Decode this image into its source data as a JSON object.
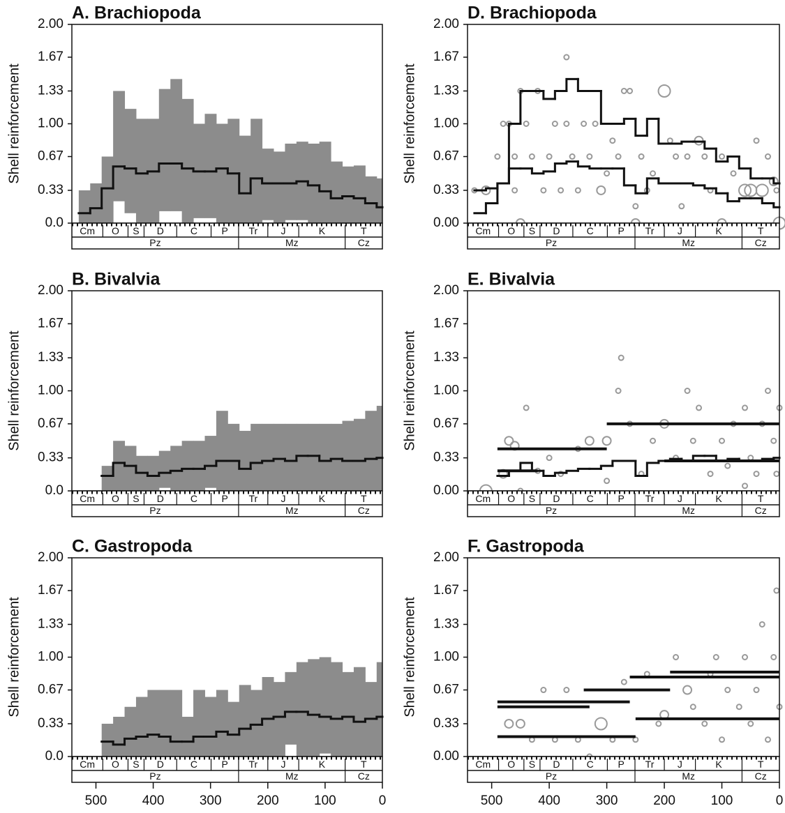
{
  "timescale": {
    "periods": [
      "Cm",
      "O",
      "S",
      "D",
      "C",
      "P",
      "Tr",
      "J",
      "K",
      "T"
    ],
    "period_bounds": [
      542,
      488,
      444,
      416,
      359,
      299,
      251,
      200,
      146,
      65,
      0
    ],
    "eras": [
      "Pz",
      "Mz",
      "Cz"
    ],
    "era_bounds": [
      542,
      251,
      65,
      0
    ]
  },
  "chart_data": [
    {
      "type": "range",
      "title": "A. Brachiopoda",
      "y_label": "Shell reinforcement",
      "xlim": [
        542,
        0
      ],
      "ylim": [
        0,
        2
      ],
      "yticks": [
        {
          "value": 0,
          "label": "0.0"
        },
        0.33,
        0.67,
        {
          "value": 1,
          "label": "1.00"
        },
        1.33,
        1.67,
        {
          "value": 2,
          "label": "2.00"
        }
      ],
      "band_color": "#8c8c8c",
      "line_color": "#111111",
      "bins": [
        530,
        510,
        490,
        470,
        450,
        430,
        410,
        390,
        370,
        350,
        330,
        310,
        290,
        270,
        250,
        230,
        210,
        190,
        170,
        150,
        130,
        110,
        90,
        70,
        50,
        30,
        10,
        0
      ],
      "upper_values": [
        0.33,
        0.4,
        0.67,
        1.33,
        1.15,
        1.05,
        1.05,
        1.35,
        1.45,
        1.25,
        1.0,
        1.1,
        1.0,
        1.05,
        0.88,
        1.05,
        0.75,
        0.72,
        0.8,
        0.82,
        0.8,
        0.82,
        0.62,
        0.57,
        0.58,
        0.47,
        0.45
      ],
      "median_values": [
        0.1,
        0.15,
        0.35,
        0.57,
        0.55,
        0.5,
        0.52,
        0.6,
        0.6,
        0.55,
        0.52,
        0.52,
        0.55,
        0.5,
        0.3,
        0.45,
        0.4,
        0.4,
        0.4,
        0.42,
        0.38,
        0.32,
        0.25,
        0.27,
        0.25,
        0.2,
        0.16
      ],
      "lower_values": [
        0,
        0,
        0,
        0.22,
        0.1,
        0,
        0,
        0.12,
        0.12,
        0,
        0.05,
        0.05,
        0,
        0,
        0,
        0,
        0.03,
        0,
        0.03,
        0.03,
        0,
        0,
        0,
        0,
        0,
        0,
        0
      ]
    },
    {
      "type": "range",
      "title": "B. Bivalvia",
      "y_label": "Shell reinforcement",
      "xlim": [
        542,
        0
      ],
      "ylim": [
        0,
        2
      ],
      "yticks": [
        {
          "value": 0,
          "label": "0.0"
        },
        0.33,
        0.67,
        {
          "value": 1,
          "label": "1.00"
        },
        1.33,
        1.67,
        {
          "value": 2,
          "label": "2.00"
        }
      ],
      "band_color": "#8c8c8c",
      "line_color": "#111111",
      "bins": [
        530,
        510,
        490,
        470,
        450,
        430,
        410,
        390,
        370,
        350,
        330,
        310,
        290,
        270,
        250,
        230,
        210,
        190,
        170,
        150,
        130,
        110,
        90,
        70,
        50,
        30,
        10,
        0
      ],
      "upper_values": [
        null,
        null,
        0.25,
        0.5,
        0.45,
        0.35,
        0.35,
        0.4,
        0.45,
        0.5,
        0.5,
        0.55,
        0.8,
        0.67,
        0.6,
        0.67,
        0.67,
        0.67,
        0.67,
        0.67,
        0.67,
        0.67,
        0.67,
        0.7,
        0.72,
        0.8,
        0.85
      ],
      "median_values": [
        null,
        null,
        0.15,
        0.28,
        0.25,
        0.18,
        0.15,
        0.18,
        0.2,
        0.22,
        0.22,
        0.25,
        0.3,
        0.3,
        0.22,
        0.28,
        0.3,
        0.32,
        0.3,
        0.35,
        0.35,
        0.3,
        0.32,
        0.3,
        0.3,
        0.32,
        0.33
      ],
      "lower_values": [
        null,
        null,
        0,
        0,
        0,
        0,
        0,
        0.03,
        0,
        0,
        0,
        0.03,
        0,
        0,
        0,
        0,
        0,
        0,
        0,
        0,
        0,
        0,
        0,
        0,
        0,
        0,
        0
      ]
    },
    {
      "type": "range",
      "title": "C. Gastropoda",
      "y_label": "Shell reinforcement",
      "xlim": [
        542,
        0
      ],
      "ylim": [
        0,
        2
      ],
      "xticks": [
        500,
        400,
        300,
        200,
        100,
        0
      ],
      "yticks": [
        {
          "value": 0,
          "label": "0.0"
        },
        0.33,
        0.67,
        {
          "value": 1,
          "label": "1.00"
        },
        1.33,
        1.67,
        {
          "value": 2,
          "label": "2.00"
        }
      ],
      "band_color": "#8c8c8c",
      "line_color": "#111111",
      "bins": [
        530,
        510,
        490,
        470,
        450,
        430,
        410,
        390,
        370,
        350,
        330,
        310,
        290,
        270,
        250,
        230,
        210,
        190,
        170,
        150,
        130,
        110,
        90,
        70,
        50,
        30,
        10,
        0
      ],
      "upper_values": [
        null,
        null,
        0.33,
        0.4,
        0.5,
        0.6,
        0.67,
        0.67,
        0.67,
        0.4,
        0.67,
        0.6,
        0.67,
        0.55,
        0.72,
        0.67,
        0.8,
        0.75,
        0.85,
        0.95,
        0.98,
        1.0,
        0.95,
        0.85,
        0.9,
        0.75,
        0.95
      ],
      "median_values": [
        null,
        null,
        0.15,
        0.12,
        0.18,
        0.2,
        0.22,
        0.2,
        0.15,
        0.15,
        0.2,
        0.2,
        0.25,
        0.22,
        0.28,
        0.32,
        0.38,
        0.4,
        0.45,
        0.45,
        0.42,
        0.4,
        0.38,
        0.4,
        0.35,
        0.38,
        0.4
      ],
      "lower_values": [
        null,
        null,
        0,
        0,
        0,
        0,
        0,
        0,
        0,
        0,
        0,
        0,
        0,
        0,
        0,
        0,
        0,
        0,
        0.12,
        0,
        0,
        0.03,
        0,
        0,
        0,
        0,
        0
      ]
    },
    {
      "type": "scatter",
      "title": "D. Brachiopoda",
      "y_label": "Shell reinforcement",
      "xlim": [
        542,
        0
      ],
      "ylim": [
        0,
        2
      ],
      "yticks": [
        {
          "value": 0,
          "label": "0.00"
        },
        0.33,
        0.67,
        {
          "value": 1,
          "label": "1.00"
        },
        1.33,
        1.67,
        {
          "value": 2,
          "label": "2.00"
        }
      ],
      "point_color": "#999999",
      "line_color": "#111111",
      "points": {
        "x": [
          530,
          510,
          490,
          480,
          470,
          460,
          460,
          450,
          440,
          430,
          420,
          410,
          400,
          390,
          380,
          370,
          360,
          350,
          340,
          330,
          320,
          310,
          300,
          290,
          280,
          270,
          260,
          250,
          240,
          230,
          220,
          200,
          190,
          180,
          170,
          160,
          140,
          130,
          120,
          100,
          80,
          60,
          50,
          40,
          30,
          20,
          10,
          5,
          370,
          0,
          100,
          250,
          450
        ],
        "y": [
          0.33,
          0.33,
          0.67,
          1.0,
          1.0,
          0.67,
          0.33,
          1.33,
          1.0,
          0.67,
          1.33,
          0.33,
          0.67,
          1.0,
          0.33,
          1.0,
          0.67,
          0.33,
          1.0,
          0.67,
          1.0,
          0.33,
          0.5,
          0.83,
          0.67,
          1.33,
          1.33,
          0.17,
          0.67,
          0.33,
          0.5,
          1.33,
          0.83,
          0.67,
          0.17,
          0.67,
          0.83,
          0.67,
          0.33,
          0.67,
          0.5,
          0.33,
          0.33,
          0.83,
          0.33,
          0.67,
          0.42,
          0.33,
          1.67,
          0.0,
          0.0,
          0.0,
          0.0
        ],
        "sizes": [
          1,
          2,
          1,
          1,
          1,
          1,
          1,
          1,
          1,
          1,
          1,
          1,
          1,
          1,
          1,
          1,
          1,
          1,
          1,
          1,
          1,
          2,
          1,
          1,
          1,
          1,
          1,
          1,
          1,
          1,
          1,
          3,
          1,
          1,
          1,
          1,
          2,
          1,
          1,
          1,
          1,
          3,
          3,
          1,
          3,
          1,
          2,
          1,
          1,
          3,
          2,
          2,
          2
        ]
      },
      "bins": [
        530,
        510,
        490,
        470,
        450,
        430,
        410,
        390,
        370,
        350,
        330,
        310,
        290,
        270,
        250,
        230,
        210,
        190,
        170,
        150,
        130,
        110,
        90,
        70,
        50,
        30,
        10,
        0
      ],
      "upper_values": [
        0.1,
        0.2,
        0.4,
        1.0,
        1.33,
        1.33,
        1.25,
        1.33,
        1.45,
        1.33,
        1.33,
        1.0,
        1.0,
        1.05,
        0.88,
        1.05,
        0.8,
        0.8,
        0.82,
        0.82,
        0.75,
        0.62,
        0.67,
        0.55,
        0.45,
        0.45,
        0.4
      ],
      "median_values": [
        0.33,
        0.35,
        0.4,
        0.55,
        0.55,
        0.5,
        0.52,
        0.6,
        0.62,
        0.57,
        0.55,
        0.55,
        0.55,
        0.38,
        0.3,
        0.45,
        0.4,
        0.4,
        0.4,
        0.38,
        0.35,
        0.3,
        0.22,
        0.25,
        0.25,
        0.2,
        0.16
      ]
    },
    {
      "type": "scatter",
      "title": "E. Bivalvia",
      "y_label": "Shell reinforcement",
      "xlim": [
        542,
        0
      ],
      "ylim": [
        0,
        2
      ],
      "yticks": [
        {
          "value": 0,
          "label": "0.00"
        },
        0.33,
        0.67,
        {
          "value": 1,
          "label": "1.00"
        },
        1.33,
        1.67,
        {
          "value": 2,
          "label": "2.00"
        }
      ],
      "point_color": "#999999",
      "line_color": "#111111",
      "points": {
        "x": [
          510,
          480,
          470,
          460,
          440,
          420,
          400,
          380,
          350,
          330,
          300,
          280,
          275,
          260,
          240,
          220,
          200,
          180,
          160,
          150,
          140,
          120,
          100,
          80,
          60,
          50,
          40,
          30,
          20,
          10,
          5,
          0,
          90,
          60,
          300,
          450
        ],
        "y": [
          0.0,
          0.17,
          0.5,
          0.45,
          0.83,
          0.2,
          0.33,
          0.17,
          0.42,
          0.5,
          0.5,
          1.0,
          1.33,
          0.67,
          0.17,
          0.5,
          0.67,
          0.33,
          1.0,
          0.5,
          0.83,
          0.17,
          0.5,
          0.67,
          0.83,
          0.33,
          0.17,
          0.67,
          1.0,
          0.5,
          0.17,
          0.83,
          0.25,
          0.05,
          0.1,
          0.0
        ],
        "sizes": [
          3,
          2,
          2,
          2,
          1,
          1,
          1,
          1,
          1,
          2,
          2,
          1,
          1,
          1,
          1,
          1,
          2,
          1,
          1,
          1,
          1,
          1,
          1,
          1,
          1,
          1,
          1,
          1,
          1,
          1,
          1,
          1,
          1,
          1,
          1,
          1
        ]
      },
      "segments": {
        "x_start": [
          490,
          300,
          490,
          200
        ],
        "x_end": [
          300,
          0,
          420,
          0
        ],
        "values": [
          0.42,
          0.67,
          0.2,
          0.3
        ]
      },
      "bins": [
        530,
        510,
        490,
        470,
        450,
        430,
        410,
        390,
        370,
        350,
        330,
        310,
        290,
        270,
        250,
        230,
        210,
        190,
        170,
        150,
        130,
        110,
        90,
        70,
        50,
        30,
        10,
        0
      ],
      "median_values": [
        null,
        null,
        0.15,
        0.2,
        0.28,
        0.2,
        0.15,
        0.18,
        0.2,
        0.22,
        0.22,
        0.25,
        0.3,
        0.3,
        0.15,
        0.28,
        0.3,
        0.32,
        0.3,
        0.35,
        0.35,
        0.3,
        0.32,
        0.3,
        0.3,
        0.32,
        0.33
      ]
    },
    {
      "type": "scatter",
      "title": "F. Gastropoda",
      "y_label": "Shell reinforcement",
      "xlim": [
        542,
        0
      ],
      "ylim": [
        0,
        2
      ],
      "xticks": [
        500,
        400,
        300,
        200,
        100,
        0
      ],
      "yticks": [
        {
          "value": 0,
          "label": "0.00"
        },
        0.33,
        0.67,
        {
          "value": 1,
          "label": "1.00"
        },
        1.33,
        1.67,
        {
          "value": 2,
          "label": "2.00"
        }
      ],
      "point_color": "#999999",
      "line_color": "#111111",
      "points": {
        "x": [
          470,
          450,
          430,
          410,
          390,
          370,
          350,
          330,
          310,
          290,
          270,
          250,
          230,
          210,
          200,
          180,
          160,
          150,
          130,
          110,
          100,
          90,
          70,
          60,
          50,
          40,
          30,
          20,
          10,
          5,
          0,
          120
        ],
        "y": [
          0.33,
          0.33,
          0.17,
          0.67,
          0.17,
          0.67,
          0.17,
          0.0,
          0.33,
          0.17,
          0.75,
          0.17,
          0.83,
          0.33,
          0.42,
          1.0,
          0.67,
          0.5,
          0.33,
          1.0,
          0.17,
          0.67,
          0.5,
          1.0,
          0.33,
          0.67,
          1.33,
          0.17,
          1.0,
          1.67,
          0.5,
          0.83
        ],
        "sizes": [
          2,
          2,
          1,
          1,
          1,
          1,
          1,
          1,
          3,
          1,
          1,
          1,
          1,
          1,
          2,
          1,
          2,
          1,
          1,
          1,
          1,
          1,
          1,
          1,
          1,
          1,
          1,
          1,
          1,
          1,
          1,
          1
        ]
      },
      "segments": {
        "x_start": [
          490,
          490,
          490,
          340,
          260,
          190,
          250
        ],
        "x_end": [
          260,
          330,
          250,
          190,
          0,
          0,
          0
        ],
        "values": [
          0.55,
          0.5,
          0.2,
          0.67,
          0.8,
          0.85,
          0.38
        ]
      }
    }
  ]
}
